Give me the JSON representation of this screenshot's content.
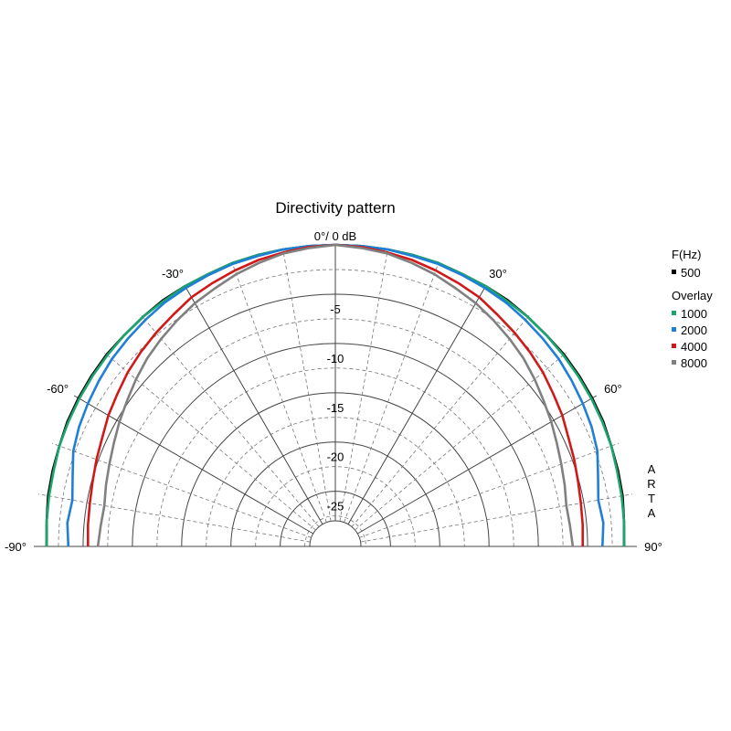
{
  "chart_data": {
    "type": "polar",
    "title": "Directivity pattern",
    "top_label": "0°/ 0 dB",
    "angle_labels": [
      "-90°",
      "-60°",
      "-30°",
      "30°",
      "60°",
      "90°"
    ],
    "angle_values": [
      -90,
      -60,
      -30,
      30,
      60,
      90
    ],
    "radial_labels": [
      "-5",
      "-10",
      "-15",
      "-20",
      "-25"
    ],
    "radial_values": [
      -5,
      -10,
      -15,
      -20,
      -25
    ],
    "rlim_db": [
      -28,
      0
    ],
    "angle_range_deg": [
      -90,
      90
    ],
    "grid": true,
    "legend": {
      "heading": "F(Hz)",
      "main": [
        {
          "name": "500",
          "color": "#000000"
        }
      ],
      "overlay_heading": "Overlay",
      "overlay": [
        {
          "name": "1000",
          "color": "#1aa56e"
        },
        {
          "name": "2000",
          "color": "#1f7fd6"
        },
        {
          "name": "4000",
          "color": "#d01919"
        },
        {
          "name": "8000",
          "color": "#808080"
        }
      ]
    },
    "angles": [
      -90,
      -85,
      -80,
      -75,
      -70,
      -65,
      -60,
      -55,
      -50,
      -45,
      -40,
      -35,
      -30,
      -25,
      -20,
      -15,
      -10,
      -5,
      0,
      5,
      10,
      15,
      20,
      25,
      30,
      35,
      40,
      45,
      50,
      55,
      60,
      65,
      70,
      75,
      80,
      85,
      90
    ],
    "series": [
      {
        "name": "500",
        "color": "#000000",
        "values": [
          -1.3,
          -1.2,
          -1.0,
          -0.9,
          -0.8,
          -0.6,
          -0.5,
          -0.4,
          -0.3,
          -0.3,
          -0.2,
          -0.1,
          -0.1,
          -0.1,
          0,
          0,
          0,
          0,
          0,
          0,
          0,
          0,
          0,
          -0.1,
          -0.1,
          -0.1,
          -0.2,
          -0.3,
          -0.3,
          -0.4,
          -0.5,
          -0.6,
          -0.8,
          -0.9,
          -1.0,
          -1.2,
          -1.3
        ]
      },
      {
        "name": "1000",
        "color": "#1aa56e",
        "values": [
          -1.3,
          -1.2,
          -1.1,
          -1.0,
          -0.8,
          -0.7,
          -0.6,
          -0.5,
          -0.4,
          -0.3,
          -0.2,
          -0.2,
          -0.1,
          -0.1,
          0,
          0,
          0,
          0,
          0,
          0,
          0,
          0,
          0,
          -0.1,
          -0.1,
          -0.2,
          -0.2,
          -0.3,
          -0.4,
          -0.5,
          -0.6,
          -0.7,
          -0.8,
          -1.0,
          -1.1,
          -1.2,
          -1.3
        ]
      },
      {
        "name": "2000",
        "color": "#1f7fd6",
        "values": [
          -3.5,
          -3.3,
          -3.5,
          -3.0,
          -2.3,
          -1.9,
          -1.6,
          -1.3,
          -1.0,
          -0.8,
          -0.6,
          -0.4,
          -0.3,
          -0.2,
          -0.1,
          -0.1,
          0,
          0,
          0,
          0,
          0,
          -0.1,
          -0.1,
          -0.2,
          -0.3,
          -0.4,
          -0.6,
          -0.8,
          -1.0,
          -1.3,
          -1.6,
          -1.9,
          -2.3,
          -3.0,
          -3.5,
          -3.3,
          -3.5
        ]
      },
      {
        "name": "4000",
        "color": "#d01919",
        "values": [
          -5.5,
          -5.4,
          -5.3,
          -5.1,
          -4.8,
          -4.5,
          -4.0,
          -3.6,
          -3.1,
          -2.7,
          -2.3,
          -1.9,
          -1.4,
          -1.1,
          -0.8,
          -0.5,
          -0.3,
          -0.1,
          0,
          -0.1,
          -0.3,
          -0.5,
          -0.8,
          -1.1,
          -1.4,
          -1.9,
          -2.3,
          -2.7,
          -3.1,
          -3.6,
          -4.0,
          -4.5,
          -4.8,
          -5.1,
          -5.3,
          -5.4,
          -5.5
        ]
      },
      {
        "name": "8000",
        "color": "#808080",
        "values": [
          -6.5,
          -6.7,
          -6.8,
          -6.5,
          -6.2,
          -5.8,
          -5.3,
          -4.8,
          -4.2,
          -3.6,
          -3.1,
          -2.6,
          -2.1,
          -1.7,
          -1.2,
          -0.8,
          -0.4,
          -0.2,
          0,
          -0.2,
          -0.4,
          -0.8,
          -1.2,
          -1.7,
          -2.1,
          -2.6,
          -3.1,
          -3.6,
          -4.2,
          -4.8,
          -5.3,
          -5.8,
          -6.2,
          -6.5,
          -6.8,
          -6.7,
          -6.5
        ]
      }
    ]
  },
  "brand": [
    "A",
    "R",
    "T",
    "A"
  ]
}
